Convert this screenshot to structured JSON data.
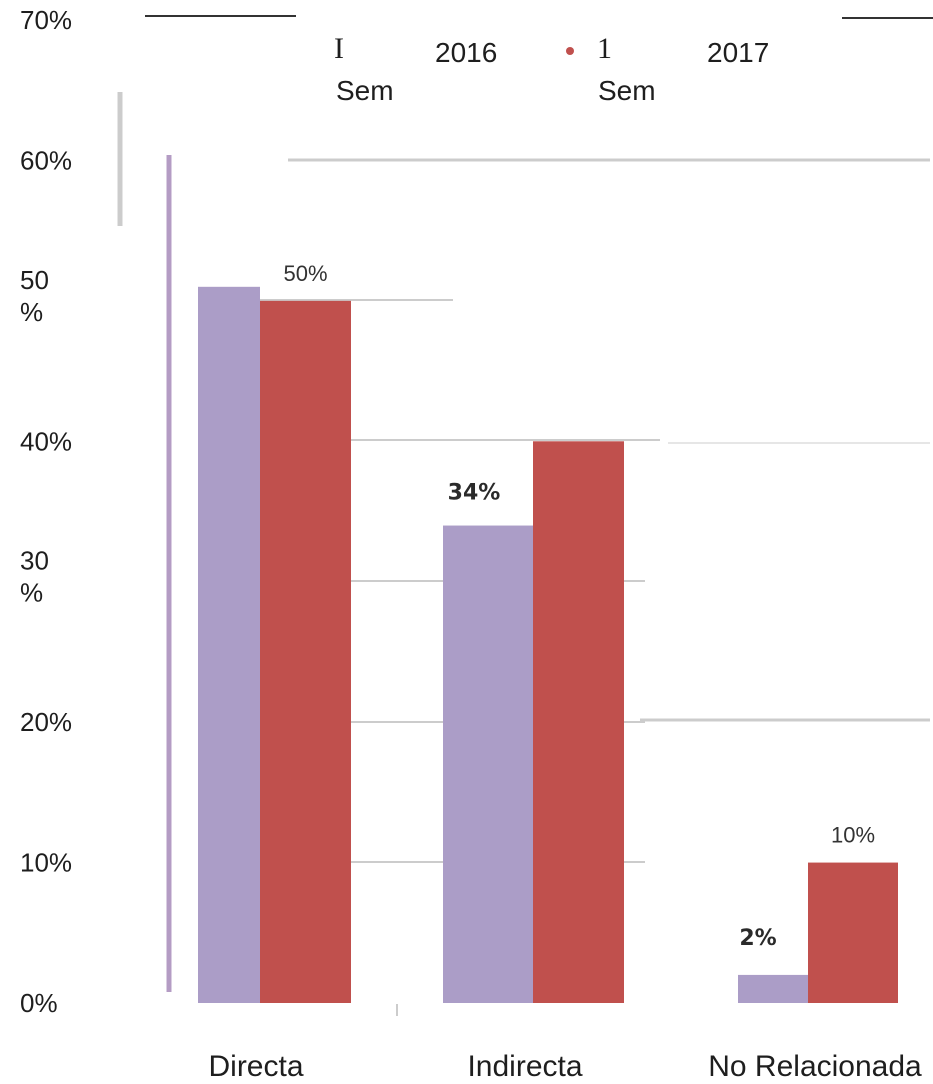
{
  "chart_data": {
    "type": "bar",
    "categories": [
      "Directa",
      "Indirecta",
      "No Relacionada"
    ],
    "series": [
      {
        "name": "I Sem 2016",
        "values": [
          51,
          34,
          2
        ],
        "labels": [
          "",
          "34%",
          "2%"
        ],
        "color": "#ab9dc7"
      },
      {
        "name": "1 Sem 2017",
        "values": [
          50,
          40,
          10
        ],
        "labels": [
          "50%",
          "",
          "10%"
        ],
        "color": "#c0504d"
      }
    ],
    "y_ticks": [
      "0%",
      "10%",
      "20%",
      "30 %",
      "40%",
      "50 %",
      "60%",
      "70%"
    ],
    "ylim": [
      0,
      70
    ],
    "grid": true,
    "legend_position": "top",
    "legend": [
      {
        "mark": "I",
        "word": "Sem",
        "year": "2016"
      },
      {
        "mark": "1",
        "word": "Sem",
        "year": "2017"
      }
    ]
  },
  "colors": {
    "grid": "#cccccc",
    "axis_accent": "#b49cc4",
    "legend_dot": "#c0504d"
  }
}
